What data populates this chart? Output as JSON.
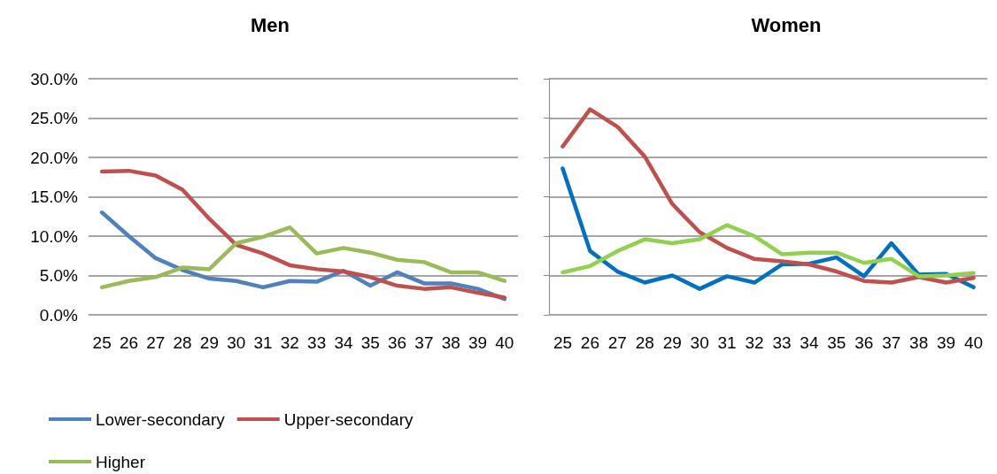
{
  "chart_data": [
    {
      "type": "line",
      "title": "Men",
      "categories": [
        "25",
        "26",
        "27",
        "28",
        "29",
        "30",
        "31",
        "32",
        "33",
        "34",
        "35",
        "36",
        "37",
        "38",
        "39",
        "40"
      ],
      "series": [
        {
          "name": "Lower-secondary",
          "color": "#4f81bd",
          "values": [
            13.0,
            10.0,
            7.2,
            5.7,
            4.6,
            4.3,
            3.5,
            4.3,
            4.2,
            5.6,
            3.7,
            5.4,
            4.0,
            4.0,
            3.3,
            2.0
          ]
        },
        {
          "name": "Upper-secondary",
          "color": "#c0504d",
          "values": [
            18.2,
            18.3,
            17.7,
            15.9,
            12.2,
            8.9,
            7.8,
            6.3,
            5.8,
            5.5,
            4.8,
            3.7,
            3.3,
            3.5,
            2.8,
            2.2
          ]
        },
        {
          "name": "Higher",
          "color": "#9bbb59",
          "values": [
            3.5,
            4.3,
            4.8,
            6.0,
            5.8,
            9.1,
            9.9,
            11.1,
            7.8,
            8.5,
            7.9,
            7.0,
            6.7,
            5.4,
            5.4,
            4.3
          ]
        }
      ],
      "ylim": [
        0,
        30
      ],
      "yticks": [
        {
          "value": 0,
          "label": "0.0%"
        },
        {
          "value": 5,
          "label": "5.0%"
        },
        {
          "value": 10,
          "label": "10.0%"
        },
        {
          "value": 15,
          "label": "15.0%"
        },
        {
          "value": 20,
          "label": "20.0%"
        },
        {
          "value": 25,
          "label": "25.0%"
        },
        {
          "value": 30,
          "label": "30.0%"
        }
      ],
      "grid": "y",
      "legend": "bottom left",
      "marker": "none",
      "line_style": "solid"
    },
    {
      "type": "line",
      "title": "Women",
      "categories": [
        "25",
        "26",
        "27",
        "28",
        "29",
        "30",
        "31",
        "32",
        "33",
        "34",
        "35",
        "36",
        "37",
        "38",
        "39",
        "40"
      ],
      "series": [
        {
          "color": "#0070c0",
          "values": [
            18.6,
            8.1,
            5.5,
            4.1,
            5.0,
            3.3,
            4.9,
            4.1,
            6.4,
            6.5,
            7.3,
            4.9,
            9.1,
            5.1,
            5.2,
            3.5
          ]
        },
        {
          "color": "#c0504d",
          "values": [
            21.4,
            26.1,
            23.9,
            20.1,
            14.1,
            10.5,
            8.5,
            7.1,
            6.8,
            6.4,
            5.5,
            4.3,
            4.1,
            4.8,
            4.1,
            4.7
          ]
        },
        {
          "color": "#92d050",
          "values": [
            5.4,
            6.2,
            8.1,
            9.6,
            9.1,
            9.6,
            11.4,
            10.0,
            7.7,
            7.9,
            7.9,
            6.6,
            7.1,
            4.9,
            5.0,
            5.3
          ]
        }
      ],
      "ylim": [
        0,
        30
      ],
      "yticks": [
        0,
        5,
        10,
        15,
        20,
        25,
        30
      ],
      "grid": "y",
      "tick_labels": "x",
      "marker": "none",
      "line_style": "solid"
    }
  ]
}
